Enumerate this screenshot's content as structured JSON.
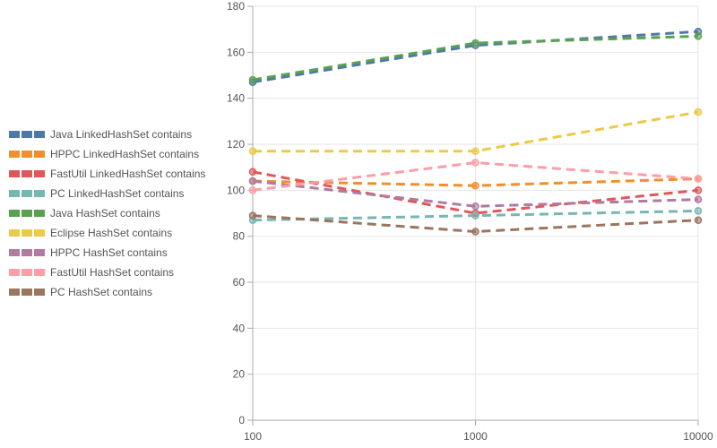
{
  "chart_data": {
    "type": "line",
    "title": "",
    "xlabel": "",
    "ylabel": "",
    "x": [
      100,
      1000,
      10000
    ],
    "x_scale": "log",
    "x_ticks": [
      "100",
      "1000",
      "10000"
    ],
    "ylim": [
      0,
      180
    ],
    "y_ticks": [
      "0",
      "20",
      "40",
      "60",
      "80",
      "100",
      "120",
      "140",
      "160",
      "180"
    ],
    "grid": true,
    "legend_position": "left",
    "line_style": "dashed",
    "series": [
      {
        "name": "Java LinkedHashSet  contains",
        "color": "#4e79a7",
        "values": [
          147,
          163,
          169
        ]
      },
      {
        "name": "HPPC LinkedHashSet  contains",
        "color": "#f28e2b",
        "values": [
          104,
          102,
          105
        ]
      },
      {
        "name": "FastUtil LinkedHashSet  contains",
        "color": "#e15759",
        "values": [
          108,
          90,
          100
        ]
      },
      {
        "name": "PC LinkedHashSet  contains",
        "color": "#76b7b2",
        "values": [
          87,
          89,
          91
        ]
      },
      {
        "name": "Java HashSet  contains",
        "color": "#59a14f",
        "values": [
          148,
          164,
          167
        ]
      },
      {
        "name": "Eclipse HashSet  contains",
        "color": "#edc948",
        "values": [
          117,
          117,
          134
        ]
      },
      {
        "name": "HPPC HashSet  contains",
        "color": "#b07aa1",
        "values": [
          104,
          93,
          96
        ]
      },
      {
        "name": "FastUtil HashSet  contains",
        "color": "#ff9da7",
        "values": [
          100,
          112,
          105
        ]
      },
      {
        "name": "PC HashSet  contains",
        "color": "#9c755f",
        "values": [
          89,
          82,
          87
        ]
      }
    ]
  }
}
